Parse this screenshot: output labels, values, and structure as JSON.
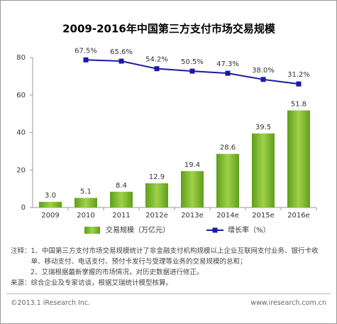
{
  "chart_data": {
    "type": "bar",
    "title": "2009-2016年中国第三方支付市场交易规模",
    "categories": [
      "2009",
      "2010",
      "2011",
      "2012e",
      "2013e",
      "2014e",
      "2015e",
      "2016e"
    ],
    "series": [
      {
        "name": "交易规模（万亿元）",
        "type": "bar",
        "color": "#7cb82f",
        "values": [
          3.0,
          5.1,
          8.4,
          12.9,
          19.4,
          28.6,
          39.5,
          51.8
        ],
        "value_labels": [
          "3.0",
          "5.1",
          "8.4",
          "12.9",
          "19.4",
          "28.6",
          "39.5",
          "51.8"
        ]
      },
      {
        "name": "增长率（%）",
        "type": "line",
        "axis": "y2",
        "color": "#1a1aa6",
        "values": [
          null,
          67.5,
          65.6,
          54.2,
          50.5,
          47.3,
          38.0,
          31.2
        ],
        "value_labels": [
          null,
          "67.5%",
          "65.6%",
          "54.2%",
          "50.5%",
          "47.3%",
          "38.0%",
          "31.2%"
        ]
      }
    ],
    "ylim": [
      0,
      80
    ],
    "yticks": [
      0,
      20,
      40,
      60,
      80
    ],
    "y2lim": [
      -155,
      71
    ],
    "legend": "bottom"
  },
  "notes": {
    "label": "注释：",
    "items": [
      "1、中国第三方支付市场交易规模统计了非金融支付机构规模以上企业互联网支付业务、银行卡收单、移动支付、电话支付、预付卡发行与受理等业务的交易规模的总和；",
      "2、艾瑞根据最新掌握的市场情况，对历史数据进行修正。"
    ]
  },
  "source": "来源：综合企业及专家访谈，根据艾瑞统计模型核算。",
  "footer": {
    "copyright": "©2013.1 iResearch Inc.",
    "url": "www.iresearch.com.cn"
  }
}
